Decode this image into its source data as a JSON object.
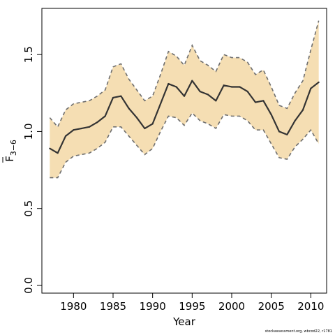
{
  "chart_data": {
    "type": "area",
    "xlabel": "Year",
    "ylabel": "F",
    "ylabel_subscript": "3−6",
    "xlim": [
      1976,
      2012
    ],
    "ylim": [
      -0.05,
      1.8
    ],
    "x_ticks": [
      1980,
      1985,
      1990,
      1995,
      2000,
      2005,
      2010
    ],
    "x_tick_labels": [
      "1980",
      "1985",
      "1990",
      "1995",
      "2000",
      "2005",
      "2010"
    ],
    "y_ticks": [
      0.0,
      0.5,
      1.0,
      1.5
    ],
    "y_tick_labels": [
      "0.0",
      "0.5",
      "1.0",
      "1.5"
    ],
    "grid": false,
    "colors": {
      "band": "#f5deb3",
      "estimate": "#333333",
      "bounds": "#6e6e6e"
    },
    "x": [
      1977,
      1978,
      1979,
      1980,
      1981,
      1982,
      1983,
      1984,
      1985,
      1986,
      1987,
      1988,
      1989,
      1990,
      1991,
      1992,
      1993,
      1994,
      1995,
      1996,
      1997,
      1998,
      1999,
      2000,
      2001,
      2002,
      2003,
      2004,
      2005,
      2006,
      2007,
      2008,
      2009,
      2010,
      2011
    ],
    "series": [
      {
        "role": "estimate",
        "values": [
          0.89,
          0.86,
          0.97,
          1.01,
          1.02,
          1.03,
          1.06,
          1.1,
          1.22,
          1.23,
          1.15,
          1.09,
          1.02,
          1.05,
          1.18,
          1.31,
          1.29,
          1.23,
          1.33,
          1.26,
          1.24,
          1.2,
          1.3,
          1.29,
          1.29,
          1.26,
          1.19,
          1.2,
          1.11,
          1.0,
          0.98,
          1.07,
          1.14,
          1.28,
          1.32
        ]
      },
      {
        "role": "lower",
        "values": [
          0.7,
          0.7,
          0.8,
          0.84,
          0.85,
          0.86,
          0.89,
          0.93,
          1.03,
          1.03,
          0.97,
          0.91,
          0.85,
          0.89,
          1.0,
          1.1,
          1.09,
          1.04,
          1.12,
          1.07,
          1.05,
          1.02,
          1.11,
          1.1,
          1.1,
          1.07,
          1.01,
          1.01,
          0.92,
          0.83,
          0.82,
          0.9,
          0.95,
          1.01,
          0.92
        ]
      },
      {
        "role": "upper",
        "values": [
          1.09,
          1.03,
          1.14,
          1.18,
          1.19,
          1.2,
          1.23,
          1.27,
          1.42,
          1.44,
          1.34,
          1.27,
          1.2,
          1.23,
          1.37,
          1.52,
          1.49,
          1.43,
          1.56,
          1.46,
          1.43,
          1.39,
          1.5,
          1.48,
          1.48,
          1.45,
          1.37,
          1.4,
          1.29,
          1.17,
          1.15,
          1.25,
          1.33,
          1.53,
          1.72
        ]
      }
    ]
  },
  "credit": "stockassessment.org, wbcod22, r1781"
}
